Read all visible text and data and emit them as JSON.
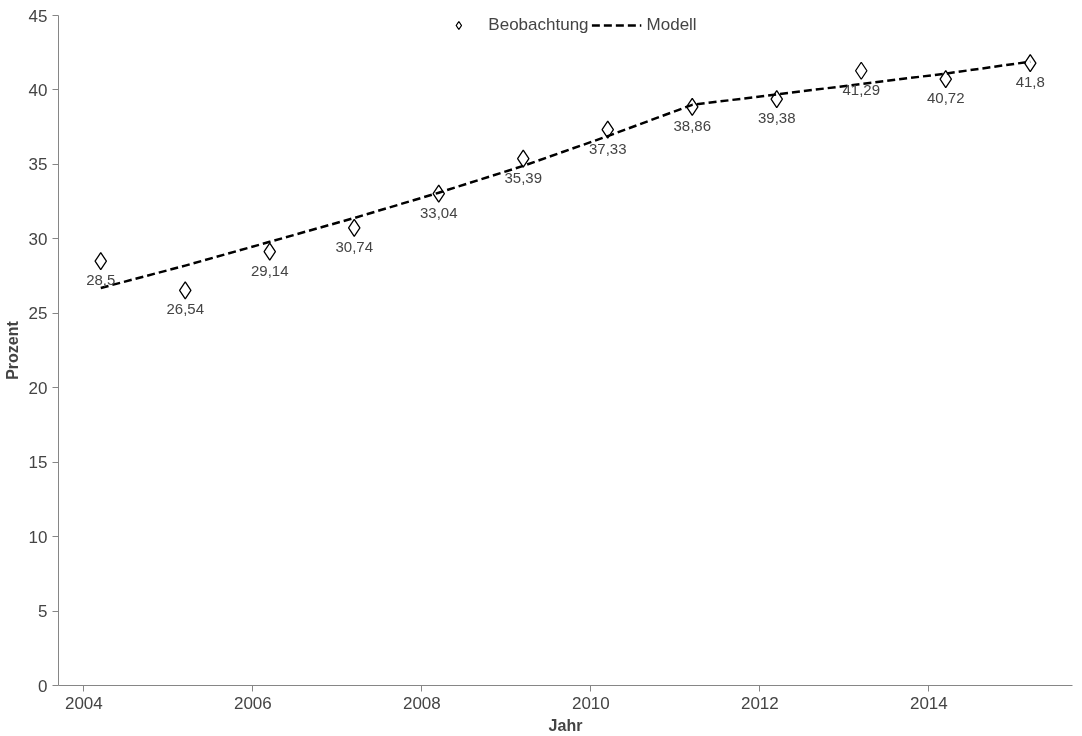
{
  "chart_data": {
    "type": "scatter",
    "xlabel": "Jahr",
    "ylabel": "Prozent",
    "x": [
      2004.2,
      2005.2,
      2006.2,
      2007.2,
      2008.2,
      2009.2,
      2010.2,
      2011.2,
      2012.2,
      2013.2,
      2014.2,
      2015.2
    ],
    "series": [
      {
        "name": "Beobachtung",
        "color": "#000000",
        "marker": "diamond",
        "values": [
          28.5,
          26.54,
          29.14,
          30.74,
          33.04,
          35.39,
          37.33,
          38.86,
          39.38,
          41.29,
          40.72,
          41.8
        ],
        "value_labels": [
          "28,5",
          "26,54",
          "29,14",
          "30,74",
          "33,04",
          "35,39",
          "37,33",
          "38,86",
          "39,38",
          "41,29",
          "40,72",
          "41,8"
        ]
      },
      {
        "name": "Modell",
        "type": "line",
        "color": "#000000",
        "line_style": "dashed",
        "marker": "none",
        "values": [
          26.7,
          28.2,
          29.8,
          31.4,
          33.1,
          34.9,
          36.9,
          39.0,
          39.7,
          40.4,
          41.1,
          41.9
        ]
      }
    ],
    "xlim": [
      2003.7,
      2015.7
    ],
    "xticks": [
      2004,
      2006,
      2008,
      2010,
      2012,
      2014
    ],
    "ylim": [
      0,
      45
    ],
    "yticks": [
      0,
      5,
      10,
      15,
      20,
      25,
      30,
      35,
      40,
      45
    ],
    "grid": false,
    "legend": "top"
  }
}
